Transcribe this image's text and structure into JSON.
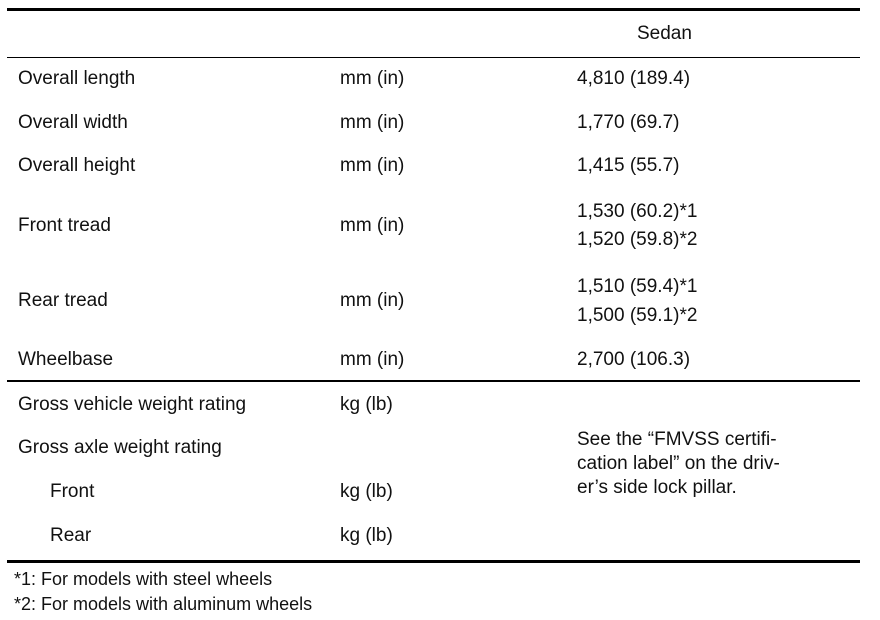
{
  "table": {
    "header": "Sedan",
    "rows": [
      {
        "label": "Overall length",
        "unit": "mm (in)",
        "value": "4,810 (189.4)"
      },
      {
        "label": "Overall width",
        "unit": "mm (in)",
        "value": "1,770 (69.7)"
      },
      {
        "label": "Overall height",
        "unit": "mm (in)",
        "value": "1,415 (55.7)"
      },
      {
        "label": "Front tread",
        "unit": "mm (in)",
        "values": [
          "1,530 (60.2)*1",
          "1,520 (59.8)*2"
        ]
      },
      {
        "label": "Rear tread",
        "unit": "mm (in)",
        "values": [
          "1,510 (59.4)*1",
          "1,500 (59.1)*2"
        ]
      },
      {
        "label": "Wheelbase",
        "unit": "mm (in)",
        "value": "2,700 (106.3)"
      }
    ],
    "weights": {
      "gvwr": {
        "label": "Gross vehicle weight rating",
        "unit": "kg (lb)"
      },
      "gawr": {
        "label": "Gross axle weight rating"
      },
      "front": {
        "label": "Front",
        "unit": "kg (lb)"
      },
      "rear": {
        "label": "Rear",
        "unit": "kg (lb)"
      },
      "note_lines": [
        "See the “FMVSS certifi-",
        "cation label” on the driv-",
        "er’s side lock pillar."
      ]
    }
  },
  "footnotes": [
    "*1: For models with steel wheels",
    "*2: For models with aluminum wheels"
  ]
}
